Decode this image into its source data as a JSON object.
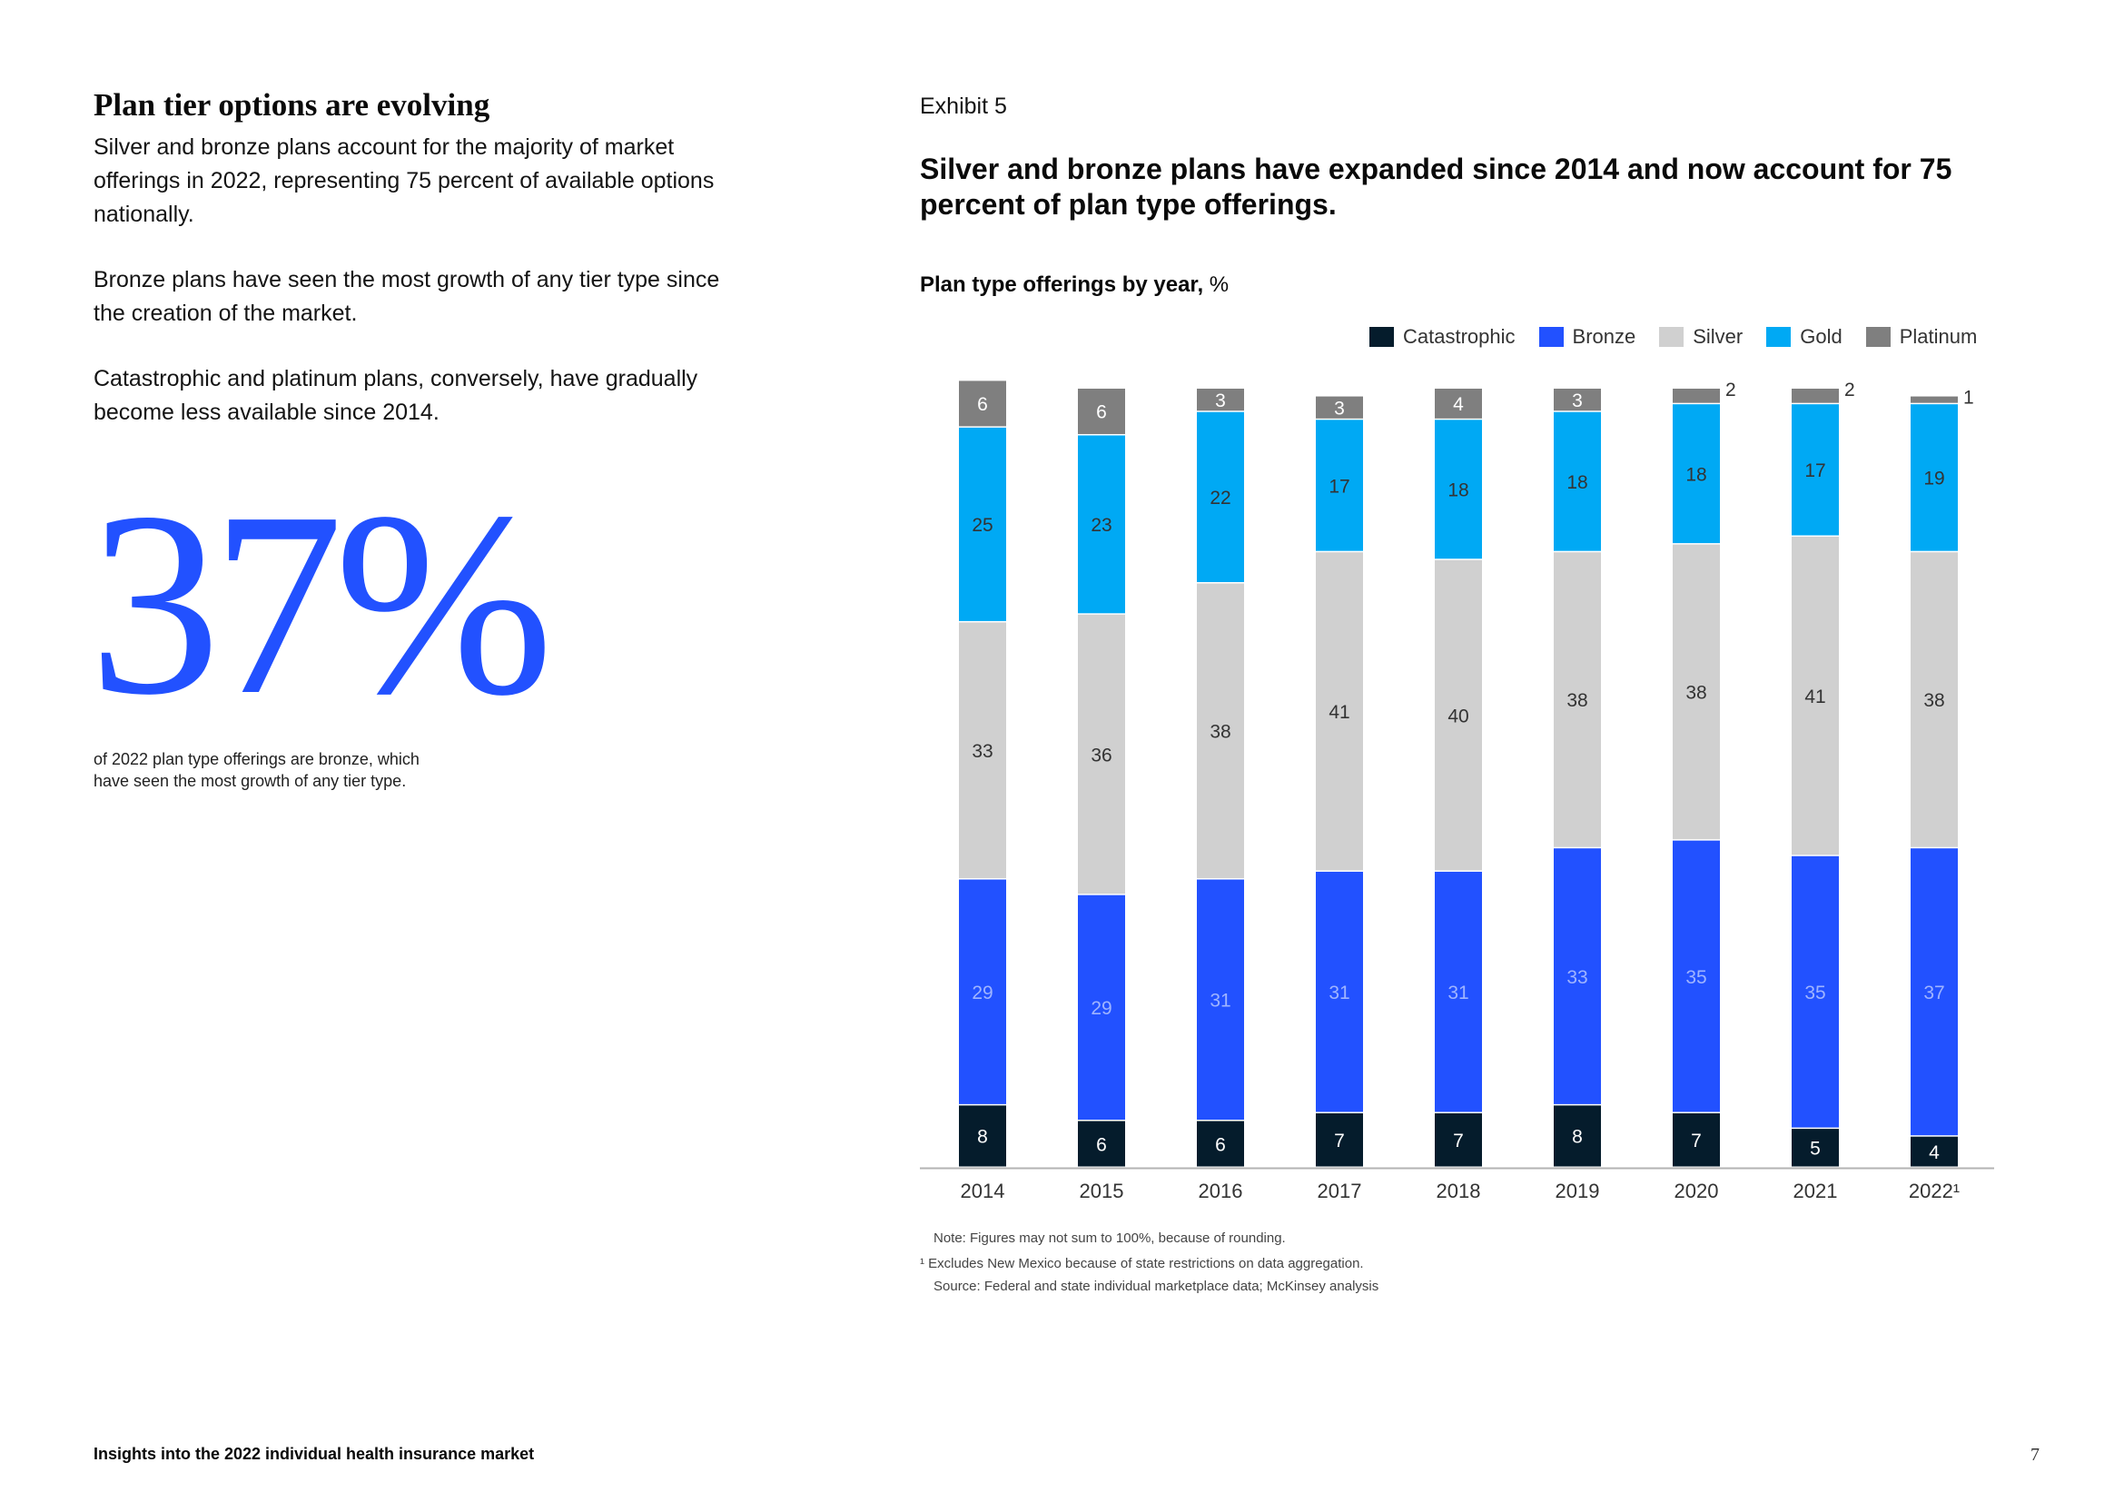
{
  "left": {
    "heading": "Plan tier options are evolving",
    "para1": "Silver and bronze plans account for the majority of market offerings in 2022, representing 75 percent of available options nationally.",
    "para2": "Bronze plans have seen the most growth of any tier type since the creation of the market.",
    "para3": "Catastrophic and platinum plans, conversely, have gradually become less available since 2014.",
    "stat_value": "37%",
    "stat_caption": "of 2022 plan type offerings are bronze, which have seen the most growth of any tier type."
  },
  "footer": {
    "title": "Insights into the 2022 individual health insurance market",
    "page_number": "7"
  },
  "exhibit": {
    "label": "Exhibit 5",
    "title": "Silver and bronze plans have expanded since 2014 and now account for 75 percent of plan type offerings.",
    "subtitle_bold": "Plan type offerings by year,",
    "subtitle_unit": " %"
  },
  "notes": {
    "note1": "Note: Figures may not sum to 100%, because of rounding.",
    "note2": "¹  Excludes New Mexico because of state restrictions on data aggregation.",
    "note3": "Source: Federal and state individual marketplace data; McKinsey analysis"
  },
  "chart_data": {
    "type": "bar",
    "stacked": true,
    "title": "Plan type offerings by year, %",
    "xlabel": "",
    "ylabel": "%",
    "ylim": [
      0,
      100
    ],
    "grid": false,
    "legend_position": "top-right",
    "categories": [
      "2014",
      "2015",
      "2016",
      "2017",
      "2018",
      "2019",
      "2020",
      "2021",
      "2022¹"
    ],
    "series": [
      {
        "name": "Catastrophic",
        "color": "#051c2c",
        "label_color": "#ffffff",
        "values": [
          8,
          6,
          6,
          7,
          7,
          8,
          7,
          5,
          4
        ]
      },
      {
        "name": "Bronze",
        "color": "#2251ff",
        "label_color": "#9fb4ff",
        "values": [
          29,
          29,
          31,
          31,
          31,
          33,
          35,
          35,
          37
        ]
      },
      {
        "name": "Silver",
        "color": "#d0d0d0",
        "label_color": "#333333",
        "values": [
          33,
          36,
          38,
          41,
          40,
          38,
          38,
          41,
          38
        ]
      },
      {
        "name": "Gold",
        "color": "#00a9f4",
        "label_color": "#333333",
        "values": [
          25,
          23,
          22,
          17,
          18,
          18,
          18,
          17,
          19
        ]
      },
      {
        "name": "Platinum",
        "color": "#7f7f7f",
        "label_color": "#ffffff",
        "values": [
          6,
          6,
          3,
          3,
          4,
          3,
          2,
          2,
          1
        ]
      }
    ]
  },
  "colors": {
    "accent": "#2251ff",
    "dark": "#051c2c"
  }
}
